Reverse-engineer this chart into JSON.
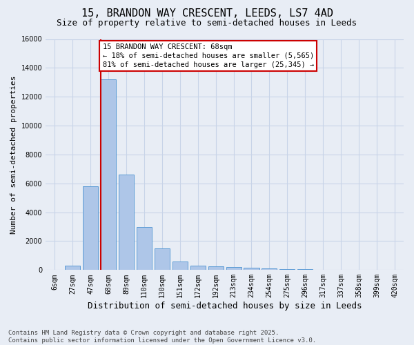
{
  "title1": "15, BRANDON WAY CRESCENT, LEEDS, LS7 4AD",
  "title2": "Size of property relative to semi-detached houses in Leeds",
  "xlabel": "Distribution of semi-detached houses by size in Leeds",
  "ylabel": "Number of semi-detached properties",
  "categories": [
    "6sqm",
    "27sqm",
    "47sqm",
    "68sqm",
    "89sqm",
    "110sqm",
    "130sqm",
    "151sqm",
    "172sqm",
    "192sqm",
    "213sqm",
    "234sqm",
    "254sqm",
    "275sqm",
    "296sqm",
    "317sqm",
    "337sqm",
    "358sqm",
    "399sqm",
    "420sqm"
  ],
  "values": [
    0,
    300,
    5800,
    13200,
    6600,
    3000,
    1500,
    600,
    300,
    250,
    200,
    150,
    100,
    80,
    50,
    30,
    20,
    10,
    5,
    2
  ],
  "bar_color": "#aec6e8",
  "bar_edge_color": "#5b9bd5",
  "grid_color": "#c8d4e8",
  "background_color": "#e8edf5",
  "red_line_index": 3,
  "annotation_text": "15 BRANDON WAY CRESCENT: 68sqm\n← 18% of semi-detached houses are smaller (5,565)\n81% of semi-detached houses are larger (25,345) →",
  "annotation_box_color": "#ffffff",
  "annotation_box_edge_color": "#cc0000",
  "red_line_color": "#cc0000",
  "ylim": [
    0,
    16000
  ],
  "yticks": [
    0,
    2000,
    4000,
    6000,
    8000,
    10000,
    12000,
    14000,
    16000
  ],
  "footnote": "Contains HM Land Registry data © Crown copyright and database right 2025.\nContains public sector information licensed under the Open Government Licence v3.0.",
  "title1_fontsize": 11,
  "title2_fontsize": 9,
  "ylabel_fontsize": 8,
  "xlabel_fontsize": 9,
  "tick_fontsize": 7,
  "annotation_fontsize": 7.5,
  "footnote_fontsize": 6.5
}
